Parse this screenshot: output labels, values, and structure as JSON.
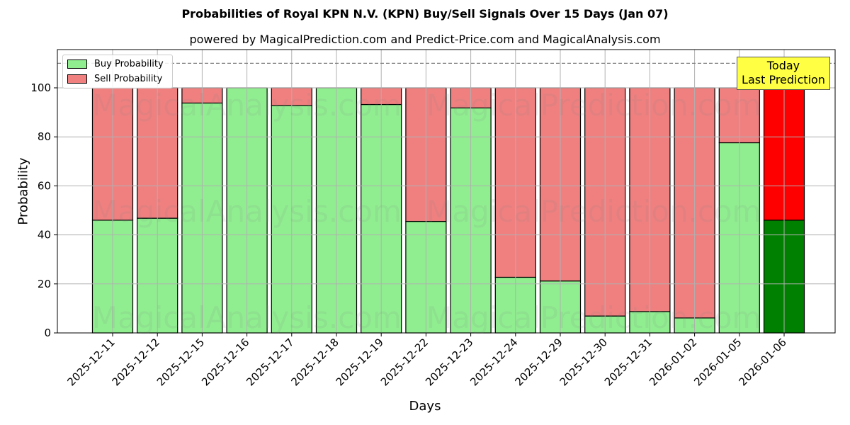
{
  "chart_data": {
    "type": "bar",
    "stacked": true,
    "title": "Probabilities of Royal KPN N.V. (KPN) Buy/Sell Signals Over 15 Days (Jan 07)",
    "subtitle": "powered by MagicalPrediction.com and Predict-Price.com and MagicalAnalysis.com",
    "xlabel": "Days",
    "ylabel": "Probability",
    "ylim": [
      0,
      115
    ],
    "yticks": [
      0,
      20,
      40,
      60,
      80,
      100
    ],
    "grid": true,
    "legend_position": "upper left",
    "reference_line": {
      "y": 110,
      "style": "dashed",
      "color": "#808080"
    },
    "categories": [
      "2025-12-11",
      "2025-12-12",
      "2025-12-15",
      "2025-12-16",
      "2025-12-17",
      "2025-12-18",
      "2025-12-19",
      "2025-12-22",
      "2025-12-23",
      "2025-12-24",
      "2025-12-29",
      "2025-12-30",
      "2025-12-31",
      "2026-01-02",
      "2026-01-05",
      "2026-01-06"
    ],
    "series": [
      {
        "name": "Buy Probability",
        "color": "#90ee90",
        "values": [
          46.0,
          46.8,
          93.8,
          100.0,
          92.8,
          100.0,
          93.2,
          45.5,
          91.8,
          22.7,
          21.2,
          6.9,
          8.7,
          6.1,
          77.6,
          46.0
        ]
      },
      {
        "name": "Sell Probability",
        "color": "#f08080",
        "values": [
          54.0,
          53.2,
          6.2,
          0.0,
          7.2,
          0.0,
          6.8,
          54.5,
          8.2,
          77.3,
          78.8,
          93.1,
          91.3,
          93.9,
          22.4,
          54.0
        ]
      }
    ],
    "highlight": {
      "index": 15,
      "buy_color": "#008000",
      "sell_color": "#ff0000",
      "annotation": "Today\nLast Prediction"
    }
  },
  "legend": {
    "buy": "Buy Probability",
    "sell": "Sell Probability"
  },
  "annotation": {
    "line1": "Today",
    "line2": "Last Prediction"
  },
  "watermarks": [
    "MagicalAnalysis.com",
    "MagicalPrediction.com"
  ]
}
